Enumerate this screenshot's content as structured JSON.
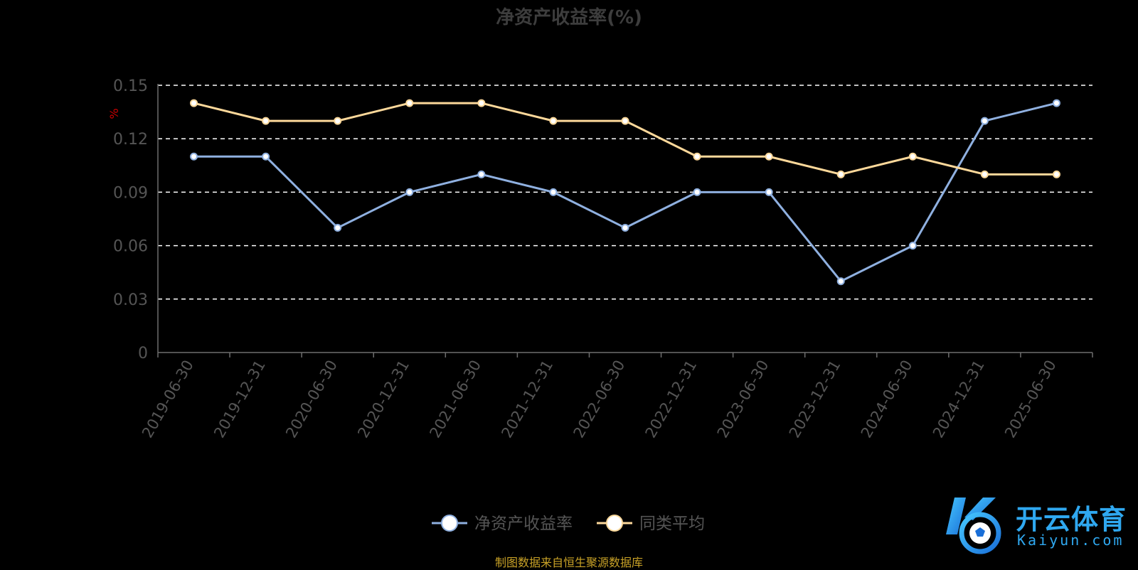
{
  "chart_data": {
    "type": "line",
    "title": "净资产收益率(%)",
    "ylabel": "%",
    "xlabel": "",
    "ylim": [
      0,
      0.15
    ],
    "yticks": [
      "0",
      "0.03",
      "0.06",
      "0.09",
      "0.12",
      "0.15"
    ],
    "categories": [
      "2019-06-30",
      "2019-12-31",
      "2020-06-30",
      "2020-12-31",
      "2021-06-30",
      "2021-12-31",
      "2022-06-30",
      "2022-12-31",
      "2023-06-30",
      "2023-12-31",
      "2024-06-30",
      "2024-12-31",
      "2025-06-30"
    ],
    "series": [
      {
        "name": "净资产收益率",
        "color": "#8fb0e0",
        "values": [
          0.11,
          0.11,
          0.07,
          0.09,
          0.1,
          0.09,
          0.07,
          0.09,
          0.09,
          0.04,
          0.06,
          0.13,
          0.14
        ]
      },
      {
        "name": "同类平均",
        "color": "#fcd89a",
        "values": [
          0.14,
          0.13,
          0.13,
          0.14,
          0.14,
          0.13,
          0.13,
          0.11,
          0.11,
          0.1,
          0.11,
          0.1,
          0.1
        ]
      }
    ],
    "grid": true,
    "legend_position": "bottom-center"
  },
  "source_note": "制图数据来自恒生聚源数据库",
  "watermark": {
    "cn": "开云体育",
    "en": "Kaiyun.com",
    "icon": "kaiyun-soccer-logo-icon"
  },
  "colors": {
    "axis": "#6e6e6e",
    "tick_text": "#555555",
    "grid": "#ffffff",
    "ylabel": "#cc0000",
    "legend_text": "#555555"
  }
}
